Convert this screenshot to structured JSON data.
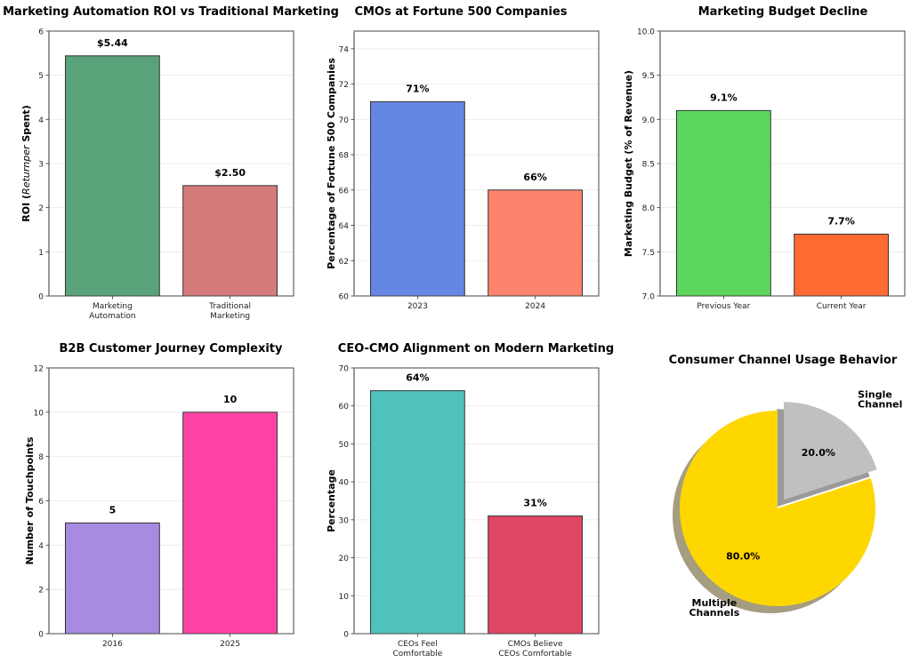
{
  "chart_data": [
    {
      "id": "roi",
      "type": "bar",
      "title": "Marketing Automation ROI vs Traditional Marketing",
      "xlabel": "",
      "ylabel_parts": [
        {
          "text": "ROI (",
          "italic": false
        },
        {
          "text": "Returnper",
          "italic": true
        },
        {
          "text": " Spent)",
          "italic": false
        }
      ],
      "categories": [
        [
          "Marketing",
          "Automation"
        ],
        [
          "Traditional",
          "Marketing"
        ]
      ],
      "values": [
        5.44,
        2.5
      ],
      "data_labels": [
        "$5.44",
        "$2.50"
      ],
      "colors": [
        "#59a27a",
        "#d67b7b"
      ],
      "ylim": [
        0,
        6
      ],
      "yticks": [
        0,
        1,
        2,
        3,
        4,
        5,
        6
      ],
      "ytick_labels": [
        "0",
        "1",
        "2",
        "3",
        "4",
        "5",
        "6"
      ],
      "grid": true
    },
    {
      "id": "cmos",
      "type": "bar",
      "title": "CMOs at Fortune 500 Companies",
      "xlabel": "",
      "ylabel_parts": [
        {
          "text": "Percentage of Fortune 500 Companies",
          "italic": false
        }
      ],
      "categories": [
        [
          "2023"
        ],
        [
          "2024"
        ]
      ],
      "values": [
        71,
        66
      ],
      "data_labels": [
        "71%",
        "66%"
      ],
      "colors": [
        "#6686e4",
        "#fe836d"
      ],
      "ylim": [
        60,
        75
      ],
      "yticks": [
        60,
        62,
        64,
        66,
        68,
        70,
        72,
        74
      ],
      "ytick_labels": [
        "60",
        "62",
        "64",
        "66",
        "68",
        "70",
        "72",
        "74"
      ],
      "grid": true
    },
    {
      "id": "budget",
      "type": "bar",
      "title": "Marketing Budget Decline",
      "xlabel": "",
      "ylabel_parts": [
        {
          "text": "Marketing Budget (% of Revenue)",
          "italic": false
        }
      ],
      "categories": [
        [
          "Previous Year"
        ],
        [
          "Current Year"
        ]
      ],
      "values": [
        9.1,
        7.7
      ],
      "data_labels": [
        "9.1%",
        "7.7%"
      ],
      "colors": [
        "#5cd65c",
        "#ff6a33"
      ],
      "ylim": [
        7.0,
        10.0
      ],
      "yticks": [
        7.0,
        7.5,
        8.0,
        8.5,
        9.0,
        9.5,
        10.0
      ],
      "ytick_labels": [
        "7.0",
        "7.5",
        "8.0",
        "8.5",
        "9.0",
        "9.5",
        "10.0"
      ],
      "grid": true
    },
    {
      "id": "journey",
      "type": "bar",
      "title": "B2B Customer Journey Complexity",
      "xlabel": "",
      "ylabel_parts": [
        {
          "text": "Number of Touchpoints",
          "italic": false
        }
      ],
      "categories": [
        [
          "2016"
        ],
        [
          "2025"
        ]
      ],
      "values": [
        5,
        10
      ],
      "data_labels": [
        "5",
        "10"
      ],
      "colors": [
        "#a68be0",
        "#ff44a6"
      ],
      "ylim": [
        0,
        12
      ],
      "yticks": [
        0,
        2,
        4,
        6,
        8,
        10,
        12
      ],
      "ytick_labels": [
        "0",
        "2",
        "4",
        "6",
        "8",
        "10",
        "12"
      ],
      "grid": true
    },
    {
      "id": "alignment",
      "type": "bar",
      "title": "CEO-CMO Alignment on Modern Marketing",
      "xlabel": "",
      "ylabel_parts": [
        {
          "text": "Percentage",
          "italic": false
        }
      ],
      "categories": [
        [
          "CEOs Feel",
          "Comfortable"
        ],
        [
          "CMOs Believe",
          "CEOs Comfortable"
        ]
      ],
      "values": [
        64,
        31
      ],
      "data_labels": [
        "64%",
        "31%"
      ],
      "colors": [
        "#4fc2bb",
        "#e14564"
      ],
      "ylim": [
        0,
        70
      ],
      "yticks": [
        0,
        10,
        20,
        30,
        40,
        50,
        60,
        70
      ],
      "ytick_labels": [
        "0",
        "10",
        "20",
        "30",
        "40",
        "50",
        "60",
        "70"
      ],
      "grid": true
    },
    {
      "id": "channels",
      "type": "pie",
      "title": "Consumer Channel Usage Behavior",
      "labels": [
        [
          "Single",
          "Channel"
        ],
        [
          "Multiple",
          "Channels"
        ]
      ],
      "values": [
        20.0,
        80.0
      ],
      "pct_labels": [
        "20.0%",
        "80.0%"
      ],
      "colors": [
        "#c0c0c0",
        "#ffd700"
      ],
      "explode": [
        true,
        false
      ],
      "shadow": true,
      "start_angle_deg": 90
    }
  ]
}
